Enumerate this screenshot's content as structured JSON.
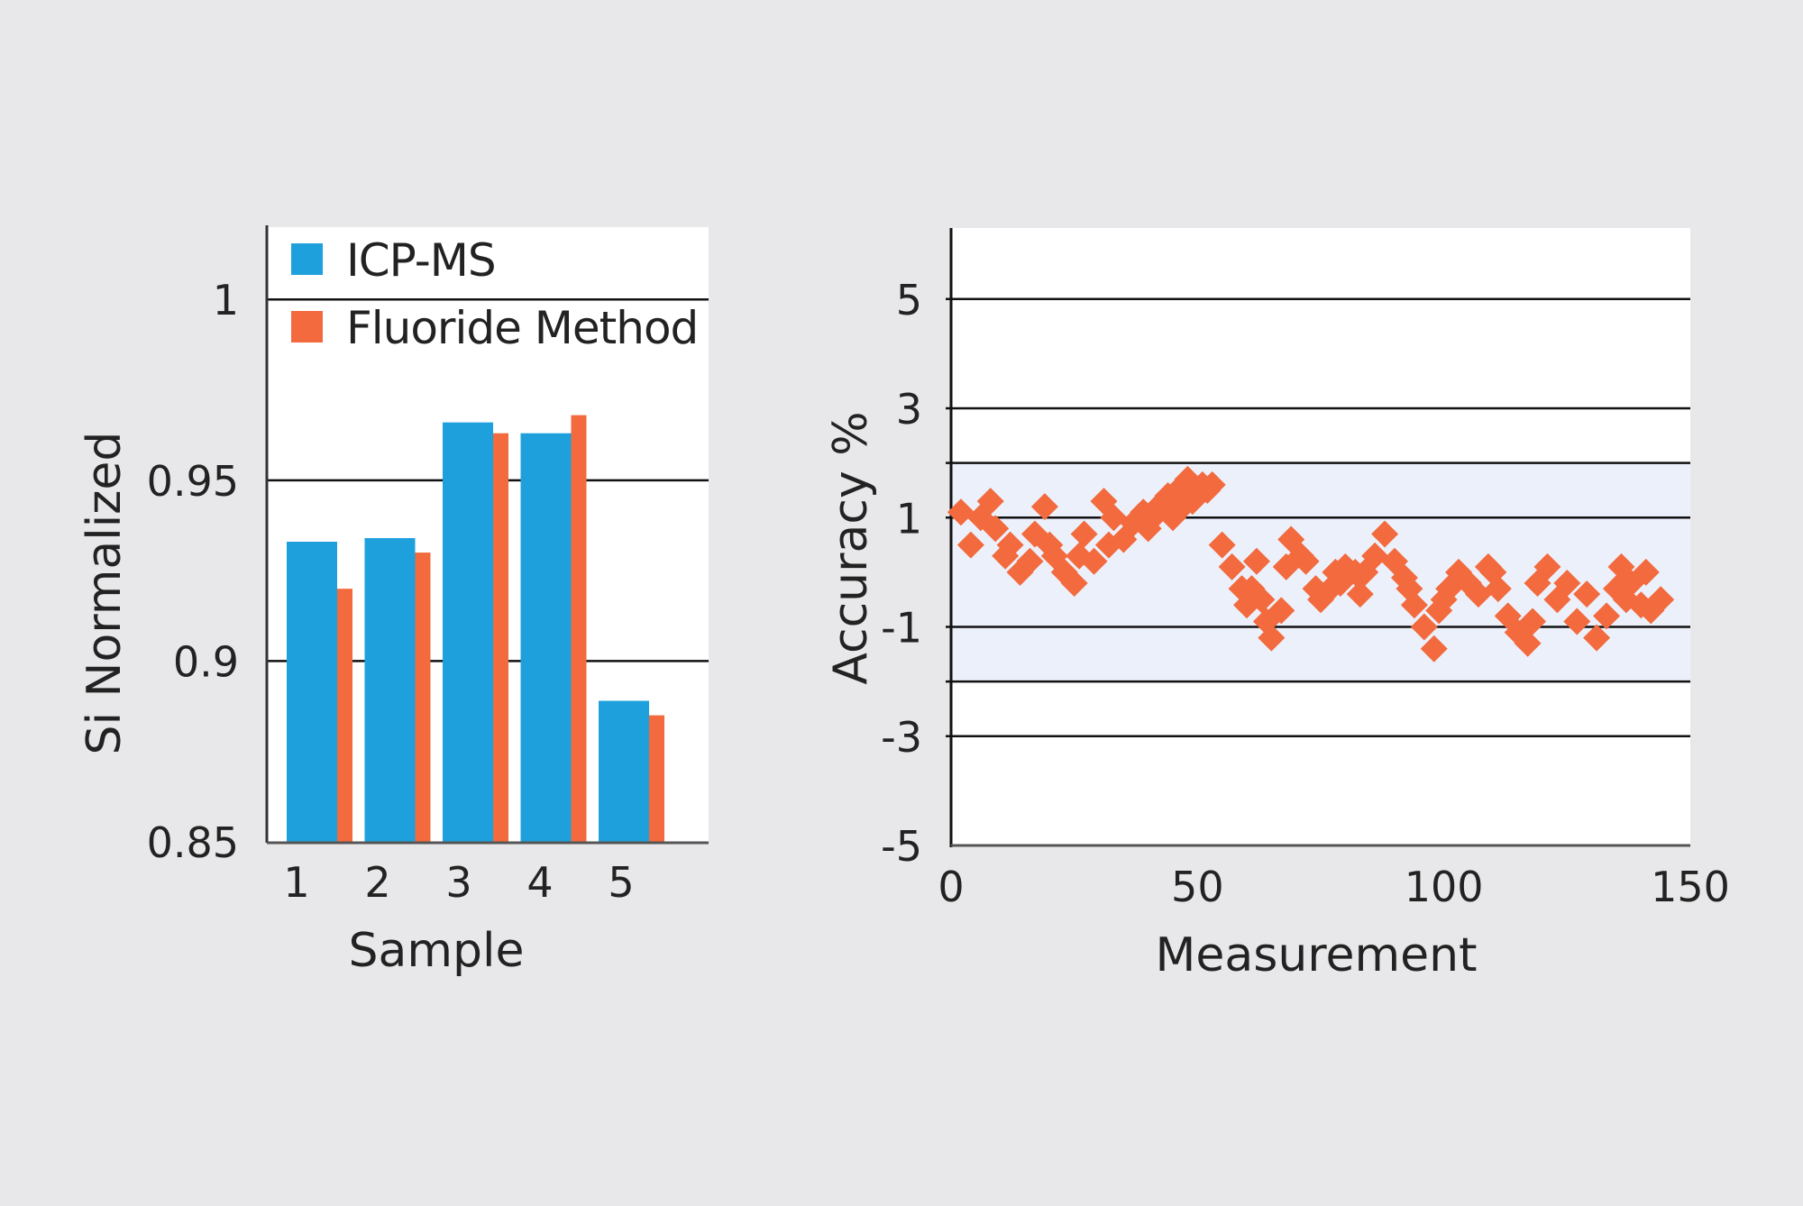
{
  "colors": {
    "background": "#e8e8ea",
    "plot_bg": "#ffffff",
    "icp_ms": "#1ea0dc",
    "fluoride": "#f26a3d",
    "band": "#ecf0fb",
    "grid": "#111111"
  },
  "chart_data": [
    {
      "type": "bar",
      "xlabel": "Sample",
      "ylabel": "Si Normalized",
      "categories": [
        "1",
        "2",
        "3",
        "4",
        "5"
      ],
      "ylim": [
        0.85,
        1.02
      ],
      "yticks": [
        "0.85",
        "0.9",
        "0.95",
        "1"
      ],
      "ytick_values": [
        0.85,
        0.9,
        0.95,
        1
      ],
      "grid": true,
      "legend_position": "top",
      "series": [
        {
          "name": "ICP-MS",
          "color": "#1ea0dc",
          "values": [
            0.933,
            0.934,
            0.966,
            0.963,
            0.889
          ]
        },
        {
          "name": "Fluoride Method",
          "color": "#f26a3d",
          "values": [
            0.92,
            0.93,
            0.963,
            0.968,
            0.885
          ]
        }
      ]
    },
    {
      "type": "scatter",
      "xlabel": "Measurement",
      "ylabel": "Accuracy %",
      "xlim": [
        0,
        150
      ],
      "ylim": [
        -5,
        6.3
      ],
      "xticks": [
        "0",
        "50",
        "100",
        "150"
      ],
      "xtick_values": [
        0,
        50,
        100,
        150
      ],
      "yticks": [
        "-5",
        "-3",
        "-1",
        "1",
        "3",
        "5"
      ],
      "ytick_values": [
        -5,
        -3,
        -1,
        1,
        3,
        5
      ],
      "gridlines": [
        -3,
        -2,
        -1,
        1,
        2,
        3,
        5
      ],
      "band": [
        -2,
        2
      ],
      "marker": "diamond",
      "color": "#f26a3d",
      "x": [
        2,
        4,
        6,
        8,
        9,
        11,
        12,
        14,
        16,
        17,
        19,
        20,
        21,
        23,
        25,
        26,
        27,
        29,
        31,
        32,
        33,
        35,
        37,
        39,
        40,
        41,
        42,
        44,
        45,
        46,
        47,
        48,
        49,
        50,
        51,
        52,
        53,
        55,
        57,
        59,
        60,
        61,
        62,
        63,
        64,
        65,
        67,
        68,
        69,
        71,
        72,
        74,
        75,
        77,
        78,
        79,
        80,
        82,
        83,
        84,
        86,
        88,
        90,
        92,
        93,
        94,
        96,
        98,
        99,
        100,
        101,
        103,
        105,
        107,
        109,
        110,
        111,
        113,
        115,
        117,
        118,
        119,
        121,
        123,
        125,
        127,
        129,
        131,
        133,
        135,
        136,
        137,
        138,
        140,
        141,
        142,
        144
      ],
      "y": [
        1.1,
        0.5,
        1.0,
        1.3,
        0.8,
        0.3,
        0.5,
        0.0,
        0.2,
        0.7,
        1.2,
        0.5,
        0.3,
        0.0,
        -0.2,
        0.3,
        0.7,
        0.2,
        1.3,
        0.5,
        1.0,
        0.6,
        0.9,
        1.1,
        0.8,
        1.0,
        1.2,
        1.4,
        1.0,
        1.5,
        1.2,
        1.7,
        1.3,
        1.4,
        1.6,
        1.5,
        1.6,
        0.5,
        0.1,
        -0.3,
        -0.6,
        -0.3,
        0.2,
        -0.5,
        -0.9,
        -1.2,
        -0.7,
        0.1,
        0.6,
        0.3,
        0.2,
        -0.3,
        -0.5,
        -0.3,
        0.0,
        -0.2,
        0.1,
        0.0,
        -0.4,
        0.0,
        0.3,
        0.7,
        0.2,
        -0.1,
        -0.3,
        -0.6,
        -1.0,
        -1.4,
        -0.7,
        -0.5,
        -0.3,
        0.0,
        -0.2,
        -0.4,
        0.1,
        0.0,
        -0.3,
        -0.8,
        -1.1,
        -1.3,
        -0.9,
        -0.2,
        0.1,
        -0.5,
        -0.2,
        -0.9,
        -0.4,
        -1.2,
        -0.8,
        -0.3,
        0.1,
        -0.5,
        -0.2,
        -0.6,
        0.0,
        -0.7,
        -0.5
      ]
    }
  ]
}
